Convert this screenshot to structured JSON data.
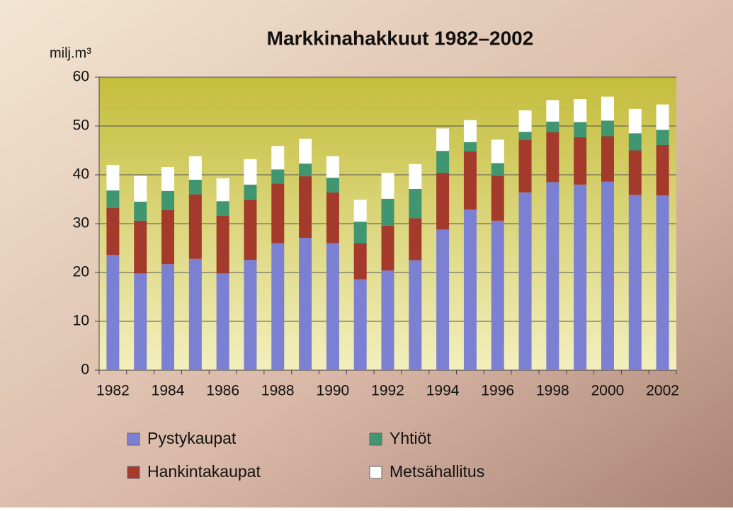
{
  "chart_data": {
    "type": "stacked_bar",
    "title": "Markkinahakkuut 1982–2002",
    "y_label": "milj.m³",
    "categories": [
      "1982",
      null,
      "1984",
      null,
      "1986",
      null,
      "1988",
      null,
      "1990",
      null,
      "1992",
      null,
      "1994",
      null,
      "1996",
      null,
      "1998",
      null,
      "2000",
      null,
      "2002"
    ],
    "series": [
      {
        "name": "Pystykaupat",
        "color": "#7b80d2",
        "values": [
          23.6,
          19.8,
          21.7,
          22.8,
          19.8,
          22.6,
          26.0,
          27.1,
          26.0,
          18.6,
          20.4,
          22.5,
          28.8,
          32.9,
          30.6,
          36.4,
          38.5,
          38.0,
          38.6,
          35.9,
          35.8
        ]
      },
      {
        "name": "Hankintakaupat",
        "color": "#a33a2c",
        "values": [
          9.6,
          10.8,
          11.1,
          13.2,
          11.8,
          12.3,
          12.2,
          12.6,
          10.4,
          7.4,
          9.2,
          8.6,
          11.6,
          11.9,
          9.2,
          10.7,
          10.2,
          9.7,
          9.3,
          9.1,
          10.3
        ]
      },
      {
        "name": "Yhtiöt",
        "color": "#3f9670",
        "values": [
          3.6,
          3.9,
          3.9,
          3.0,
          3.0,
          3.1,
          2.9,
          2.6,
          3.0,
          4.4,
          5.5,
          6.0,
          4.5,
          1.9,
          2.6,
          1.7,
          2.2,
          3.1,
          3.2,
          3.5,
          3.1
        ]
      },
      {
        "name": "Metsähallitus",
        "color": "#ffffff",
        "values": [
          5.2,
          5.3,
          4.9,
          4.8,
          4.7,
          5.2,
          4.8,
          5.1,
          4.4,
          4.5,
          5.3,
          5.1,
          4.6,
          4.5,
          4.8,
          4.4,
          4.4,
          4.7,
          4.9,
          5.0,
          5.2
        ]
      }
    ],
    "ylim": [
      0,
      60
    ],
    "yticks": [
      0,
      10,
      20,
      30,
      40,
      50,
      60
    ],
    "grid": true
  }
}
